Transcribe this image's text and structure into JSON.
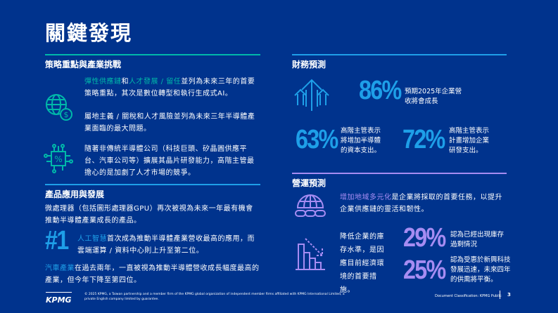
{
  "title": "關鍵發現",
  "colors": {
    "background": "#00338D",
    "teal": "#00B8A9",
    "blue": "#1E9FE8",
    "purple": "#A68CF2"
  },
  "left": {
    "section1": {
      "heading": "策略重點與產業挑戰",
      "p1": {
        "hl1": "彈性供應鏈",
        "t1": "和",
        "hl2": "人才發展 / 留任",
        "t2": "並列為未來三年的首要策略重點，其次是數位轉型和執行生成式AI。"
      },
      "p2": "屬地主義 / 關稅和人才風險並列為未來三年半導體產業面臨的最大問題。",
      "p3": "隨著非傳統半導體公司（科技巨頭、矽晶圓供應平台、汽車公司等）擴展其晶片研發能力，高階主管最擔心的是加劇了人才市場的競爭。",
      "icons": [
        "globe-dollar-icon",
        "chip-percent-icon"
      ]
    },
    "section2": {
      "heading": "產品應用與發展",
      "p1": "微處理器（包括圖形處理器GPU）再次被視為未來一年最有機會推動半導體產業成長的產品。",
      "rank": "#1",
      "p2": {
        "hl": "人工智慧",
        "t": "首次成為推動半導體產業營收最高的應用，而雲端運算 / 資料中心則上升至第二位。"
      },
      "p3": {
        "hl": "汽車產業",
        "t": "在過去兩年，一直被視為推動半導體營收成長幅度最高的產業，但今年下降至第四位。"
      }
    }
  },
  "right": {
    "section1": {
      "heading": "財務預測",
      "stats": [
        {
          "value": "86%",
          "text": "預期2025年企業營收將會成長"
        },
        {
          "value": "63%",
          "text": "高階主管表示將增加半導體的資本支出。"
        },
        {
          "value": "72%",
          "text": "高階主管表示計畫增加企業研發支出。"
        }
      ]
    },
    "section2": {
      "heading": "營運預測",
      "p1": {
        "hl": "增加地域多元化",
        "t": "是企業將採取的首要任務，以提升企業供應鏈的靈活和韌性。"
      },
      "p2": "降低企業的庫存水準，是因應目前經濟環境的首要措施。",
      "stats": [
        {
          "value": "29%",
          "text": "認為已經出現庫存過剩情況"
        },
        {
          "value": "25%",
          "text": "認為受惠於新興科技發展迅速，未來四年的供需將平衡。"
        }
      ]
    }
  },
  "footer": {
    "logo": "KPMG",
    "legal": "© 2025 KPMG, a Taiwan partnership and a member firm of the KPMG global organization of independent member firms affiliated with KPMG International Limited, a private English company limited by guarantee.",
    "classification": "Document Classification: KPMG Public",
    "page": "3"
  }
}
